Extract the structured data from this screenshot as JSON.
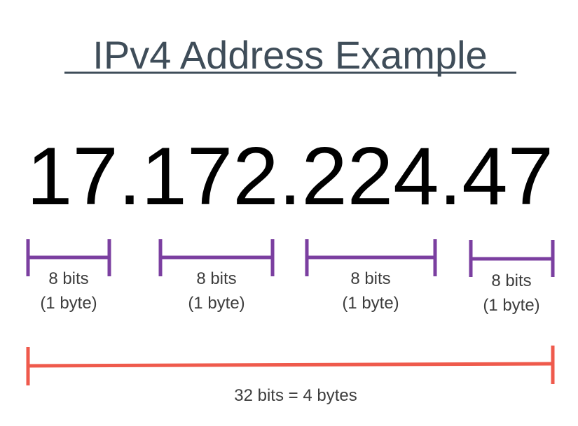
{
  "title": "IPv4 Address Example",
  "address": "17.172.224.47",
  "octets": [
    {
      "bits": "8 bits",
      "bytes": "(1 byte)"
    },
    {
      "bits": "8 bits",
      "bytes": "(1 byte)"
    },
    {
      "bits": "8 bits",
      "bytes": "(1 byte)"
    },
    {
      "bits": "8 bits",
      "bytes": "(1 byte)"
    }
  ],
  "total": "32 bits = 4 bytes"
}
